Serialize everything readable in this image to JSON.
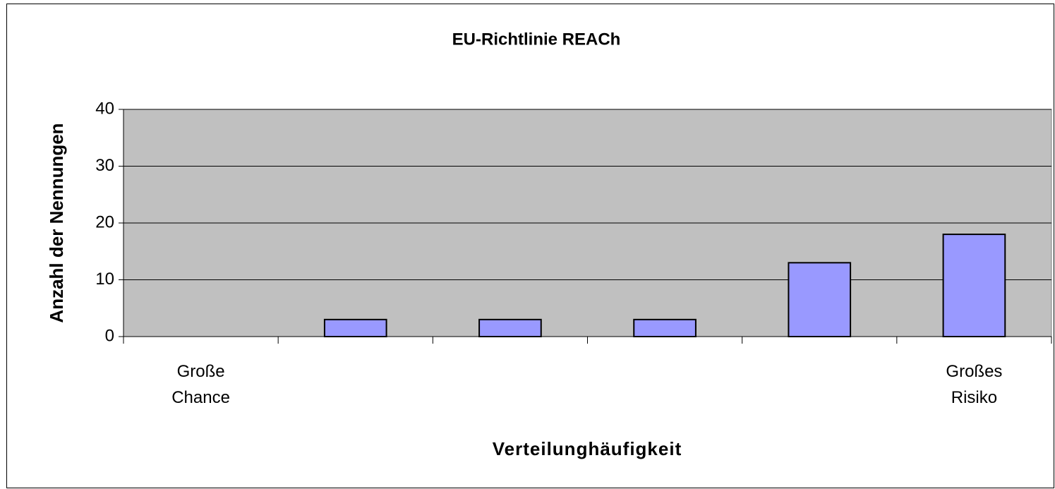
{
  "chart_data": {
    "type": "bar",
    "title": "EU-Richtlinie REACh",
    "x_label": "Verteilunghäufigkeit",
    "y_label": "Anzahl der Nennungen",
    "categories": [
      "Große\nChance",
      null,
      null,
      null,
      null,
      "Großes\nRisiko"
    ],
    "values": [
      0,
      3,
      3,
      3,
      13,
      18
    ],
    "color": "#9999ff",
    "ylim": [
      0,
      40
    ],
    "yticks": [
      0,
      10,
      20,
      30,
      40
    ],
    "grid": true
  }
}
